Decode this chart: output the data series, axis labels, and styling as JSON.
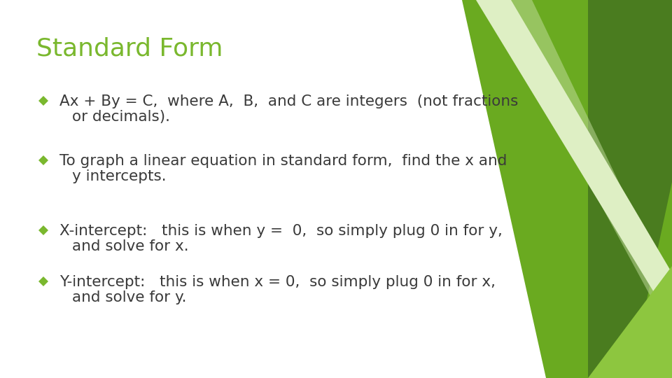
{
  "title": "Standard Form",
  "title_color": "#7ab82e",
  "title_fontsize": 26,
  "background_color": "#ffffff",
  "bullet_color": "#7ab82e",
  "text_color": "#3a3a3a",
  "body_fontsize": 15.5,
  "bullets": [
    {
      "line1": "Ax + By = C,  where A,  B,  and C are integers  (not fractions",
      "line2": "or decimals)."
    },
    {
      "line1": "To graph a linear equation in standard form,  find the x and",
      "line2": "y intercepts."
    },
    {
      "line1": "X-intercept:   this is when y =  0,  so simply plug 0 in for y,",
      "line2": "and solve for x."
    },
    {
      "line1": "Y-intercept:   this is when x = 0,  so simply plug 0 in for x,",
      "line2": "and solve for y."
    }
  ],
  "shape_colors": {
    "dark_green": "#4a7c1f",
    "mid_green": "#6aaa20",
    "bright_green": "#8dc63f",
    "light_green": "#c5dfa0",
    "very_light_green": "#deefc4"
  }
}
